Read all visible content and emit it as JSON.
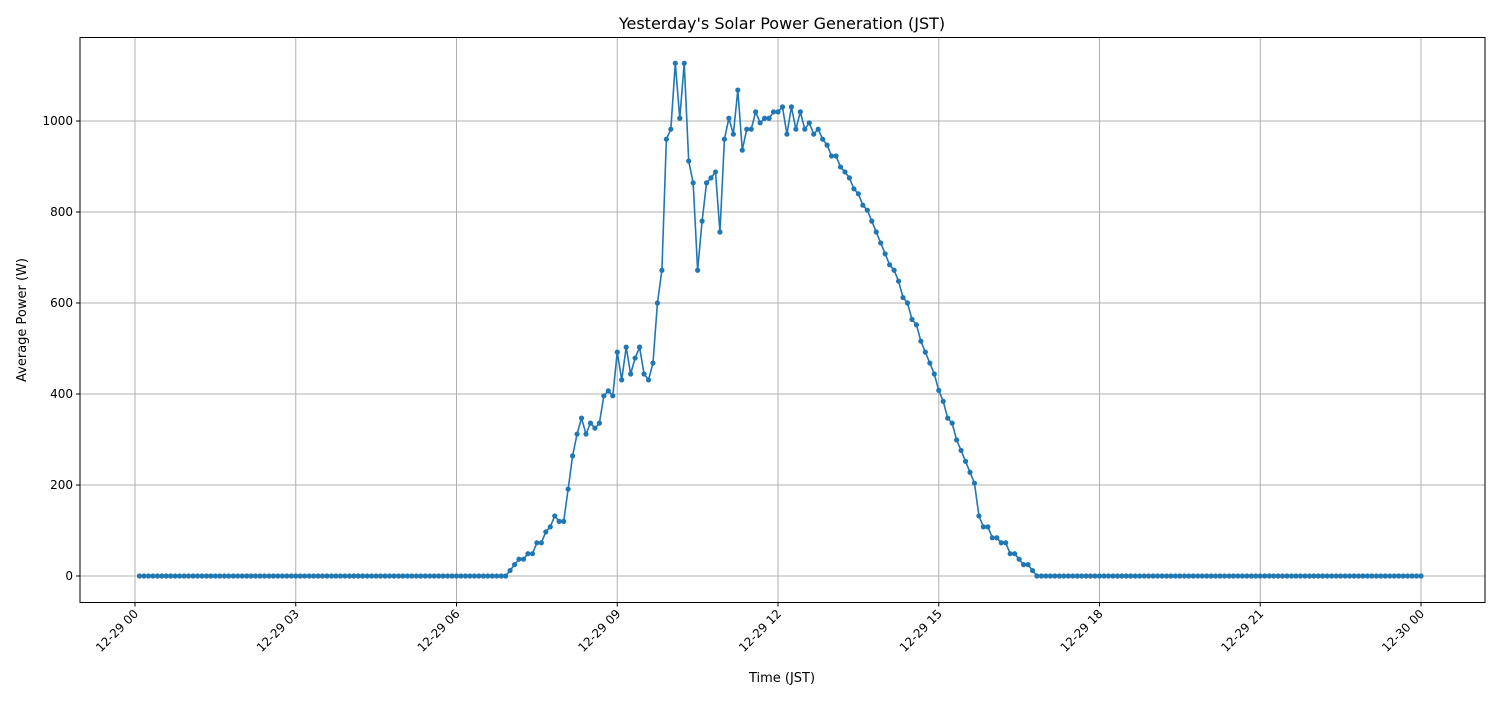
{
  "chart_data": {
    "type": "line",
    "title": "Yesterday's Solar Power Generation (JST)",
    "xlabel": "Time (JST)",
    "ylabel": "Average Power (W)",
    "x_start": "12-29 00:05",
    "x_interval_minutes": 5,
    "xlim": [
      "12-28 23:00",
      "12-30 01:10"
    ],
    "ylim": [
      -57,
      1185
    ],
    "x_ticks": [
      "12-29 00",
      "12-29 03",
      "12-29 06",
      "12-29 09",
      "12-29 12",
      "12-29 15",
      "12-29 18",
      "12-29 21",
      "12-30 00"
    ],
    "y_ticks": [
      0,
      200,
      400,
      600,
      800,
      1000
    ],
    "grid": true,
    "color": "#1f77b4",
    "marker": "circle",
    "leading_zero_count": 83,
    "active_values": [
      12,
      25,
      37,
      37,
      49,
      49,
      73,
      73,
      97,
      108,
      132,
      120,
      120,
      191,
      264,
      312,
      347,
      312,
      336,
      325,
      336,
      396,
      407,
      396,
      492,
      431,
      503,
      444,
      479,
      503,
      444,
      431,
      468,
      600,
      672,
      960,
      982,
      1127,
      1006,
      1127,
      912,
      864,
      672,
      780,
      864,
      875,
      888,
      756,
      960,
      1006,
      971,
      1068,
      936,
      982,
      982,
      1020,
      996,
      1006,
      1006,
      1020,
      1020,
      1031,
      971,
      1031,
      982,
      1020,
      982,
      996,
      971,
      982,
      960,
      947,
      923,
      923,
      899,
      888,
      875,
      851,
      840,
      815,
      804,
      780,
      756,
      732,
      708,
      684,
      672,
      648,
      612,
      600,
      564,
      552,
      516,
      492,
      468,
      444,
      408,
      384,
      347,
      336,
      299,
      276,
      252,
      228,
      204,
      132,
      108,
      108,
      84,
      84,
      73,
      73,
      49,
      49,
      37,
      25,
      25,
      12
    ],
    "trailing_zero_count": 87
  }
}
